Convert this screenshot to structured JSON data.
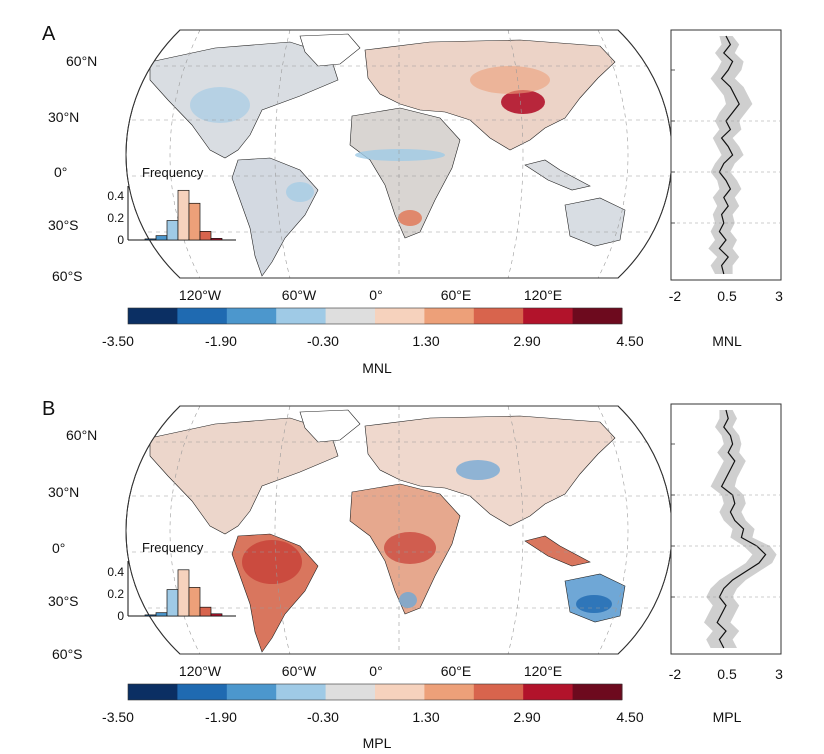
{
  "chart_data": [
    {
      "panel_letter": "A",
      "type": "heatmap",
      "map": {
        "lat_labels": [
          "60°N",
          "30°N",
          "0°",
          "30°S",
          "60°S"
        ],
        "lon_labels": [
          "120°W",
          "60°W",
          "0°",
          "60°E",
          "120°E"
        ],
        "hotspots": "positive MNL in Tibetan Plateau / Central Asia and southern Africa; negative in tropical belt and parts of North America"
      },
      "colorbar": {
        "colors": [
          "#0b2f63",
          "#1f6ab1",
          "#4c97cd",
          "#9fcae6",
          "#dedede",
          "#f6d2bd",
          "#eda079",
          "#d8644d",
          "#b2132b",
          "#6d0a1e"
        ],
        "tick_labels": [
          "-3.50",
          "-1.90",
          "-0.30",
          "1.30",
          "2.90",
          "4.50"
        ],
        "label": "MNL"
      },
      "inset_histogram": {
        "title": "Frequency",
        "yticks": [
          "0.4",
          "0.2",
          "0"
        ],
        "ymax": 0.5,
        "values": [
          0.0,
          0.01,
          0.04,
          0.18,
          0.46,
          0.34,
          0.08,
          0.015,
          0.0
        ],
        "colors": [
          "#0b2f63",
          "#1f6ab1",
          "#4c97cd",
          "#9fcae6",
          "#f6d2bd",
          "#eda079",
          "#d8644d",
          "#b2132b",
          "#6d0a1e"
        ]
      },
      "zonal_profile": {
        "xticks": [
          "-2",
          "0.5",
          "3"
        ],
        "xlim": [
          -2,
          3
        ],
        "xlabel": "MNL",
        "lat": [
          80,
          75,
          70,
          65,
          60,
          55,
          50,
          45,
          40,
          35,
          30,
          25,
          20,
          15,
          10,
          5,
          0,
          -5,
          -10,
          -15,
          -20,
          -25,
          -30,
          -35,
          -40,
          -45,
          -50,
          -55,
          -60
        ],
        "mean": [
          0.5,
          0.7,
          0.4,
          0.8,
          0.6,
          0.3,
          0.7,
          0.9,
          1.1,
          0.8,
          0.5,
          0.7,
          0.3,
          0.6,
          0.8,
          0.4,
          0.2,
          0.5,
          0.7,
          0.4,
          0.6,
          0.3,
          0.4,
          0.2,
          0.5,
          0.2,
          0.6,
          0.3,
          0.4
        ],
        "band_low": [
          0.2,
          0.3,
          0.0,
          0.3,
          0.1,
          -0.2,
          0.1,
          0.4,
          0.5,
          0.2,
          0.0,
          0.2,
          -0.1,
          0.1,
          0.3,
          0.0,
          -0.2,
          0.1,
          0.2,
          -0.1,
          0.1,
          -0.1,
          0.0,
          -0.2,
          0.0,
          -0.3,
          0.1,
          -0.2,
          0.0
        ],
        "band_high": [
          0.8,
          1.1,
          0.9,
          1.3,
          1.2,
          0.9,
          1.3,
          1.5,
          1.7,
          1.4,
          1.1,
          1.2,
          0.8,
          1.1,
          1.3,
          0.9,
          0.7,
          1.0,
          1.2,
          0.9,
          1.1,
          0.8,
          0.9,
          0.7,
          1.0,
          0.8,
          1.1,
          0.8,
          0.8
        ]
      }
    },
    {
      "panel_letter": "B",
      "type": "heatmap",
      "map": {
        "lat_labels": [
          "60°N",
          "30°N",
          "0°",
          "30°S",
          "60°S"
        ],
        "lon_labels": [
          "120°W",
          "60°W",
          "0°",
          "60°E",
          "120°E"
        ],
        "hotspots": "strong positive MPL over Amazon, Congo basin and Indonesia; negative MPL over Australia, parts of Central Asia"
      },
      "colorbar": {
        "colors": [
          "#0b2f63",
          "#1f6ab1",
          "#4c97cd",
          "#9fcae6",
          "#dedede",
          "#f6d2bd",
          "#eda079",
          "#d8644d",
          "#b2132b",
          "#6d0a1e"
        ],
        "tick_labels": [
          "-3.50",
          "-1.90",
          "-0.30",
          "1.30",
          "2.90",
          "4.50"
        ],
        "label": "MPL"
      },
      "inset_histogram": {
        "title": "Frequency",
        "yticks": [
          "0.4",
          "0.2",
          "0"
        ],
        "ymax": 0.5,
        "values": [
          0.0,
          0.01,
          0.03,
          0.24,
          0.42,
          0.26,
          0.08,
          0.02,
          0.0
        ],
        "colors": [
          "#0b2f63",
          "#1f6ab1",
          "#4c97cd",
          "#9fcae6",
          "#f6d2bd",
          "#eda079",
          "#d8644d",
          "#b2132b",
          "#6d0a1e"
        ]
      },
      "zonal_profile": {
        "xticks": [
          "-2",
          "0.5",
          "3"
        ],
        "xlim": [
          -2,
          3
        ],
        "xlabel": "MPL",
        "lat": [
          80,
          75,
          70,
          65,
          60,
          55,
          50,
          45,
          40,
          35,
          30,
          25,
          20,
          15,
          10,
          5,
          0,
          -5,
          -10,
          -15,
          -20,
          -25,
          -30,
          -35,
          -40,
          -45,
          -50,
          -55,
          -60
        ],
        "mean": [
          0.5,
          0.6,
          0.4,
          0.7,
          0.8,
          0.6,
          0.9,
          0.7,
          0.5,
          0.3,
          0.8,
          0.9,
          0.7,
          0.9,
          1.3,
          1.2,
          1.9,
          2.3,
          2.0,
          1.4,
          0.8,
          0.4,
          0.2,
          0.5,
          0.3,
          0.1,
          0.5,
          0.2,
          0.4
        ],
        "band_low": [
          0.2,
          0.2,
          0.0,
          0.3,
          0.4,
          0.1,
          0.4,
          0.2,
          0.0,
          -0.2,
          0.3,
          0.4,
          0.2,
          0.4,
          0.8,
          0.7,
          1.3,
          1.7,
          1.4,
          0.8,
          0.2,
          -0.2,
          -0.4,
          -0.1,
          -0.3,
          -0.5,
          -0.1,
          -0.4,
          -0.2
        ],
        "band_high": [
          0.8,
          1.0,
          0.8,
          1.1,
          1.2,
          1.1,
          1.4,
          1.2,
          1.0,
          0.9,
          1.3,
          1.4,
          1.2,
          1.4,
          1.8,
          1.7,
          2.5,
          2.8,
          2.6,
          2.0,
          1.4,
          1.0,
          0.8,
          1.1,
          0.9,
          0.7,
          1.1,
          0.8,
          1.0
        ]
      }
    }
  ]
}
